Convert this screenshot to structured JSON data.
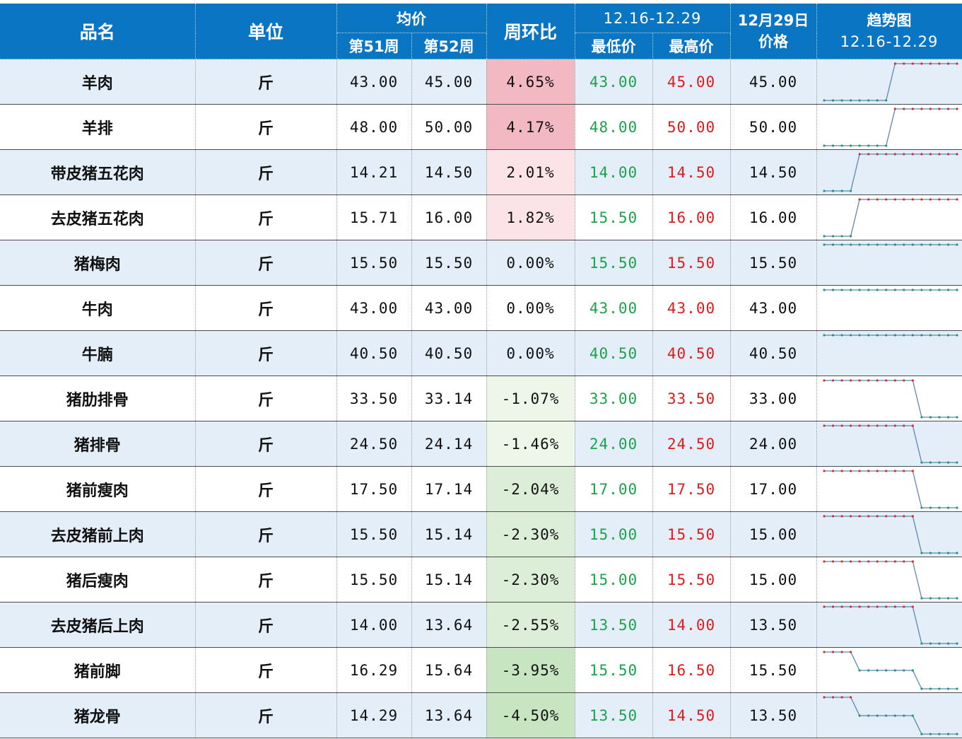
{
  "header": {
    "name": "品名",
    "unit": "单位",
    "avg": "均价",
    "week51": "第51周",
    "week52": "第52周",
    "wow": "周环比",
    "range": "12.16-12.29",
    "min": "最低价",
    "max": "最高价",
    "dec29_line1": "12月29日",
    "dec29_line2": "价格",
    "trend_line1": "趋势图",
    "trend_line2": "12.16-12.29"
  },
  "colors": {
    "header_bg": "#0a75c2",
    "row_odd": "#e4eef9",
    "low_text": "#1aa34a",
    "high_text": "#e01b1b",
    "up_strong": "#f3b9c3",
    "up_light": "#fbe3e7",
    "down_light": "#eef6ea",
    "down_strong": "#c8e5c1",
    "spark_line": "#5b86b5",
    "spark_high_dot": "#d82c2c",
    "spark_low_dot": "#1f9a6a"
  },
  "chart_data": {
    "type": "table",
    "columns": [
      "品名",
      "单位",
      "第51周",
      "第52周",
      "周环比",
      "最低价",
      "最高价",
      "12月29日价格",
      "趋势图 12.16-12.29"
    ],
    "rows": [
      {
        "name": "羊肉",
        "unit": "斤",
        "w51": "43.00",
        "w52": "45.00",
        "wow": "4.65%",
        "wow_value": 4.65,
        "min": "43.00",
        "max": "45.00",
        "dec29": "45.00",
        "trend": [
          43,
          43,
          43,
          43,
          43,
          43,
          43,
          43,
          45,
          45,
          45,
          45,
          45,
          45,
          45,
          45
        ]
      },
      {
        "name": "羊排",
        "unit": "斤",
        "w51": "48.00",
        "w52": "50.00",
        "wow": "4.17%",
        "wow_value": 4.17,
        "min": "48.00",
        "max": "50.00",
        "dec29": "50.00",
        "trend": [
          48,
          48,
          48,
          48,
          48,
          48,
          48,
          48,
          50,
          50,
          50,
          50,
          50,
          50,
          50,
          50
        ]
      },
      {
        "name": "带皮猪五花肉",
        "unit": "斤",
        "w51": "14.21",
        "w52": "14.50",
        "wow": "2.01%",
        "wow_value": 2.01,
        "min": "14.00",
        "max": "14.50",
        "dec29": "14.50",
        "trend": [
          14,
          14,
          14,
          14,
          14.5,
          14.5,
          14.5,
          14.5,
          14.5,
          14.5,
          14.5,
          14.5,
          14.5,
          14.5,
          14.5,
          14.5
        ]
      },
      {
        "name": "去皮猪五花肉",
        "unit": "斤",
        "w51": "15.71",
        "w52": "16.00",
        "wow": "1.82%",
        "wow_value": 1.82,
        "min": "15.50",
        "max": "16.00",
        "dec29": "16.00",
        "trend": [
          15.5,
          15.5,
          15.5,
          15.5,
          16,
          16,
          16,
          16,
          16,
          16,
          16,
          16,
          16,
          16,
          16,
          16
        ]
      },
      {
        "name": "猪梅肉",
        "unit": "斤",
        "w51": "15.50",
        "w52": "15.50",
        "wow": "0.00%",
        "wow_value": 0,
        "min": "15.50",
        "max": "15.50",
        "dec29": "15.50",
        "trend": [
          15.5,
          15.5,
          15.5,
          15.5,
          15.5,
          15.5,
          15.5,
          15.5,
          15.5,
          15.5,
          15.5,
          15.5,
          15.5,
          15.5,
          15.5,
          15.5
        ]
      },
      {
        "name": "牛肉",
        "unit": "斤",
        "w51": "43.00",
        "w52": "43.00",
        "wow": "0.00%",
        "wow_value": 0,
        "min": "43.00",
        "max": "43.00",
        "dec29": "43.00",
        "trend": [
          43,
          43,
          43,
          43,
          43,
          43,
          43,
          43,
          43,
          43,
          43,
          43,
          43,
          43,
          43,
          43
        ]
      },
      {
        "name": "牛腩",
        "unit": "斤",
        "w51": "40.50",
        "w52": "40.50",
        "wow": "0.00%",
        "wow_value": 0,
        "min": "40.50",
        "max": "40.50",
        "dec29": "40.50",
        "trend": [
          40.5,
          40.5,
          40.5,
          40.5,
          40.5,
          40.5,
          40.5,
          40.5,
          40.5,
          40.5,
          40.5,
          40.5,
          40.5,
          40.5,
          40.5,
          40.5
        ]
      },
      {
        "name": "猪肋排骨",
        "unit": "斤",
        "w51": "33.50",
        "w52": "33.14",
        "wow": "-1.07%",
        "wow_value": -1.07,
        "min": "33.00",
        "max": "33.50",
        "dec29": "33.00",
        "trend": [
          33.5,
          33.5,
          33.5,
          33.5,
          33.5,
          33.5,
          33.5,
          33.5,
          33.5,
          33.5,
          33.5,
          33,
          33,
          33,
          33,
          33
        ]
      },
      {
        "name": "猪排骨",
        "unit": "斤",
        "w51": "24.50",
        "w52": "24.14",
        "wow": "-1.46%",
        "wow_value": -1.46,
        "min": "24.00",
        "max": "24.50",
        "dec29": "24.00",
        "trend": [
          24.5,
          24.5,
          24.5,
          24.5,
          24.5,
          24.5,
          24.5,
          24.5,
          24.5,
          24.5,
          24.5,
          24,
          24,
          24,
          24,
          24
        ]
      },
      {
        "name": "猪前瘦肉",
        "unit": "斤",
        "w51": "17.50",
        "w52": "17.14",
        "wow": "-2.04%",
        "wow_value": -2.04,
        "min": "17.00",
        "max": "17.50",
        "dec29": "17.00",
        "trend": [
          17.5,
          17.5,
          17.5,
          17.5,
          17.5,
          17.5,
          17.5,
          17.5,
          17.5,
          17.5,
          17.5,
          17,
          17,
          17,
          17,
          17
        ]
      },
      {
        "name": "去皮猪前上肉",
        "unit": "斤",
        "w51": "15.50",
        "w52": "15.14",
        "wow": "-2.30%",
        "wow_value": -2.3,
        "min": "15.00",
        "max": "15.50",
        "dec29": "15.00",
        "trend": [
          15.5,
          15.5,
          15.5,
          15.5,
          15.5,
          15.5,
          15.5,
          15.5,
          15.5,
          15.5,
          15.5,
          15,
          15,
          15,
          15,
          15
        ]
      },
      {
        "name": "猪后瘦肉",
        "unit": "斤",
        "w51": "15.50",
        "w52": "15.14",
        "wow": "-2.30%",
        "wow_value": -2.3,
        "min": "15.00",
        "max": "15.50",
        "dec29": "15.00",
        "trend": [
          15.5,
          15.5,
          15.5,
          15.5,
          15.5,
          15.5,
          15.5,
          15.5,
          15.5,
          15.5,
          15.5,
          15,
          15,
          15,
          15,
          15
        ]
      },
      {
        "name": "去皮猪后上肉",
        "unit": "斤",
        "w51": "14.00",
        "w52": "13.64",
        "wow": "-2.55%",
        "wow_value": -2.55,
        "min": "13.50",
        "max": "14.00",
        "dec29": "13.50",
        "trend": [
          14,
          14,
          14,
          14,
          14,
          14,
          14,
          14,
          14,
          14,
          14,
          13.5,
          13.5,
          13.5,
          13.5,
          13.5
        ]
      },
      {
        "name": "猪前脚",
        "unit": "斤",
        "w51": "16.29",
        "w52": "15.64",
        "wow": "-3.95%",
        "wow_value": -3.95,
        "min": "15.50",
        "max": "16.50",
        "dec29": "15.50",
        "trend": [
          16.5,
          16.5,
          16.5,
          16.5,
          16,
          16,
          16,
          16,
          16,
          16,
          16,
          15.5,
          15.5,
          15.5,
          15.5,
          15.5
        ]
      },
      {
        "name": "猪龙骨",
        "unit": "斤",
        "w51": "14.29",
        "w52": "13.64",
        "wow": "-4.50%",
        "wow_value": -4.5,
        "min": "13.50",
        "max": "14.50",
        "dec29": "13.50",
        "trend": [
          14.5,
          14.5,
          14.5,
          14.5,
          14,
          14,
          14,
          14,
          14,
          14,
          14,
          13.5,
          13.5,
          13.5,
          13.5,
          13.5
        ]
      }
    ]
  }
}
